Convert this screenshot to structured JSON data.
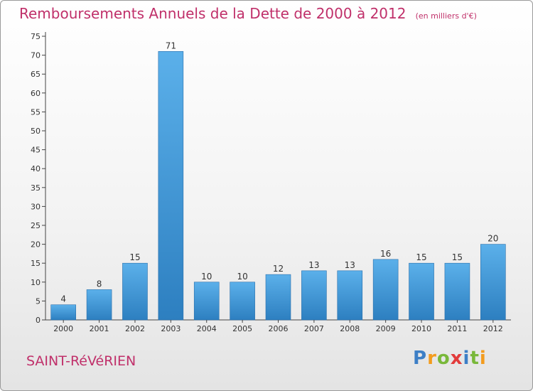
{
  "header": {
    "title": "Remboursements Annuels de la Dette de 2000 à 2012",
    "unit": "(en milliers d'€)"
  },
  "footer": {
    "commune": "SAINT-RéVéRIEN",
    "logo": {
      "letters": [
        "P",
        "r",
        "o",
        "x",
        "i",
        "t",
        "i"
      ],
      "colors": [
        "#3d7fc6",
        "#f39c1e",
        "#79b83a",
        "#e23b3b",
        "#3d7fc6",
        "#79b83a",
        "#f39c1e"
      ]
    }
  },
  "chart_data": {
    "type": "bar",
    "title": "Remboursements Annuels de la Dette de 2000 à 2012",
    "categories": [
      "2000",
      "2001",
      "2002",
      "2003",
      "2004",
      "2005",
      "2006",
      "2007",
      "2008",
      "2009",
      "2010",
      "2011",
      "2012"
    ],
    "values": [
      4,
      8,
      15,
      71,
      10,
      10,
      12,
      13,
      13,
      16,
      15,
      15,
      20
    ],
    "ylim": [
      0,
      75
    ],
    "yticks": [
      0,
      5,
      10,
      15,
      20,
      25,
      30,
      35,
      40,
      45,
      50,
      55,
      60,
      65,
      70,
      75
    ],
    "grid": false,
    "bar_color": "#3f97dc",
    "xlabel": "",
    "ylabel": ""
  }
}
